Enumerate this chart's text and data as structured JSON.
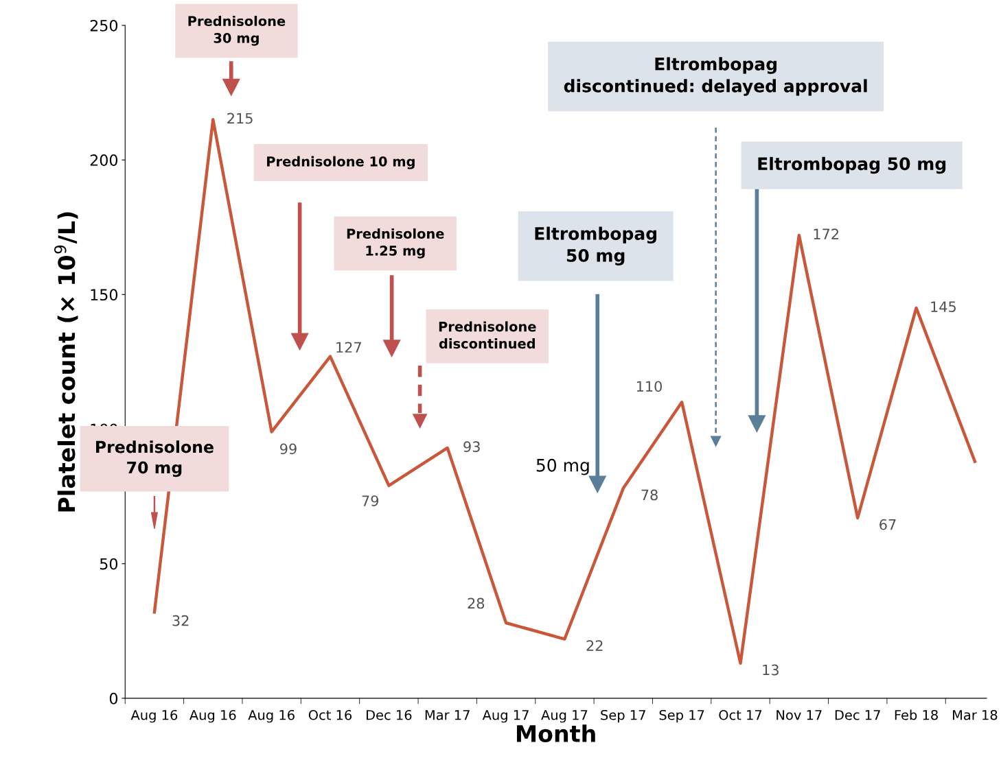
{
  "chart_data": {
    "type": "line",
    "xlabel": "Month",
    "ylabel": "Platelet count (× 10$^{9}$/L)",
    "categories": [
      "Aug 16",
      "Aug 16",
      "Aug 16",
      "Oct 16",
      "Dec 16",
      "Mar 17",
      "Aug 17",
      "Aug 17",
      "Sep 17",
      "Sep 17",
      "Oct 17",
      "Nov 17",
      "Dec 17",
      "Feb 18",
      "Mar 18"
    ],
    "series": [
      {
        "color": "#c9573a",
        "values": [
          32,
          215,
          99,
          127,
          79,
          93,
          28,
          22,
          78,
          110,
          13,
          172,
          67,
          145,
          88
        ],
        "value_labels": [
          "32",
          "215",
          "99",
          "127",
          "79",
          "93",
          "28",
          "22",
          "78",
          "110",
          "13",
          "172",
          "67",
          "145",
          null
        ]
      }
    ],
    "ylim": [
      0,
      250
    ],
    "yticks": [
      0,
      50,
      100,
      150,
      200,
      250
    ],
    "grid": false,
    "marker": "none",
    "line_style": "solid",
    "annotations": [
      "Prednisolone\n70 mg",
      "Prednisolone\n30 mg",
      "Prednisolone 10 mg",
      "Prednisolone\n1.25 mg",
      "Prednisolone\ndiscontinued",
      "Eltrombopag\n50 mg",
      "50 mg",
      "Eltrombopag\ndiscontinued: delayed approval",
      "Eltrombopag 50 mg"
    ]
  }
}
